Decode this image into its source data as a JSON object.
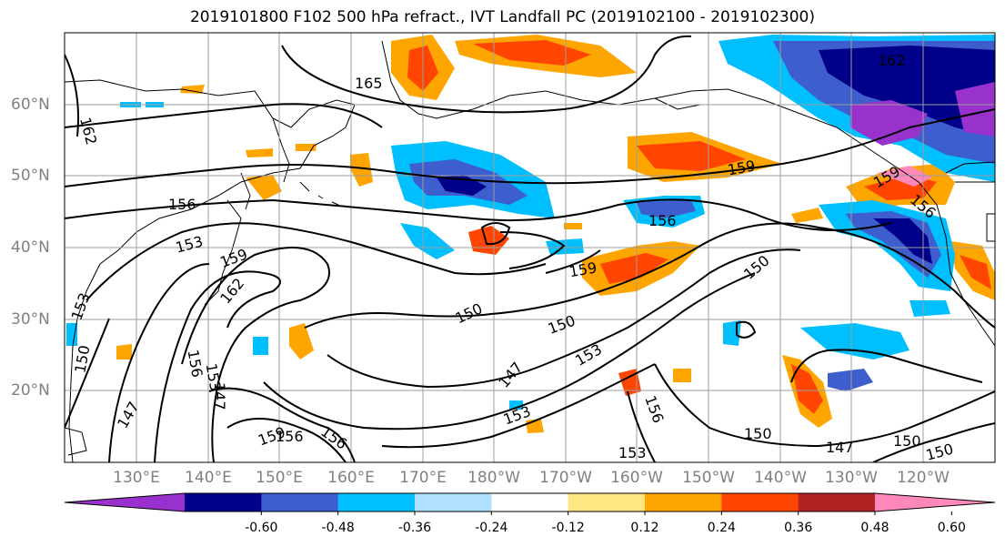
{
  "title": "2019101800 F102 500 hPa refract., IVT Landfall PC (2019102100 - 2019102300)",
  "lat_labels": [
    "60°N",
    "50°N",
    "40°N",
    "30°N",
    "20°N"
  ],
  "lon_labels": [
    "130°E",
    "140°E",
    "150°E",
    "160°E",
    "170°E",
    "180°W",
    "170°W",
    "160°W",
    "150°W",
    "140°W",
    "130°W",
    "120°W"
  ],
  "contour_labels": [
    "165",
    "162",
    "162",
    "162",
    "159",
    "159",
    "159",
    "159",
    "159",
    "156",
    "156",
    "156",
    "156",
    "156",
    "156",
    "156",
    "153",
    "153",
    "153",
    "153",
    "153",
    "153",
    "150",
    "150",
    "150",
    "150",
    "150",
    "150",
    "150",
    "147",
    "147",
    "147",
    "147"
  ],
  "colorbar": {
    "tick_labels": [
      "-0.60",
      "-0.48",
      "-0.36",
      "-0.24",
      "-0.12",
      "0.12",
      "0.24",
      "0.36",
      "0.48",
      "0.60"
    ],
    "bins": [
      {
        "color": "#9932cc"
      },
      {
        "color": "#00008b"
      },
      {
        "color": "#3d5ecc"
      },
      {
        "color": "#00bfff"
      },
      {
        "color": "#b0e0ff"
      },
      {
        "color": "#ffffff"
      },
      {
        "color": "#ffe680"
      },
      {
        "color": "#ffa500"
      },
      {
        "color": "#ff4500"
      },
      {
        "color": "#b22222"
      },
      {
        "color": "#ff88bb"
      }
    ],
    "extend": "both"
  }
}
